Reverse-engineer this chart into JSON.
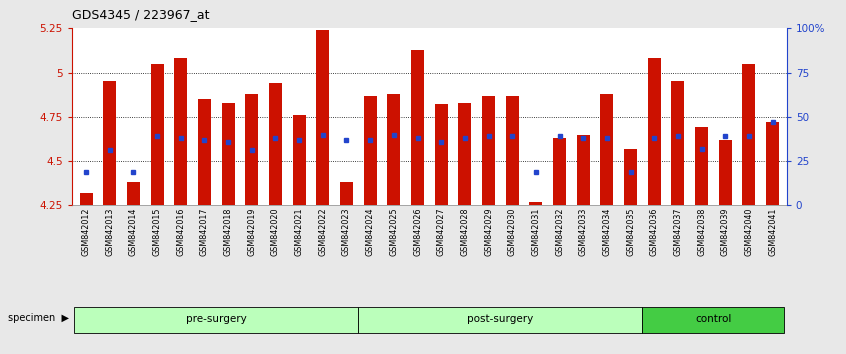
{
  "title": "GDS4345 / 223967_at",
  "samples": [
    "GSM842012",
    "GSM842013",
    "GSM842014",
    "GSM842015",
    "GSM842016",
    "GSM842017",
    "GSM842018",
    "GSM842019",
    "GSM842020",
    "GSM842021",
    "GSM842022",
    "GSM842023",
    "GSM842024",
    "GSM842025",
    "GSM842026",
    "GSM842027",
    "GSM842028",
    "GSM842029",
    "GSM842030",
    "GSM842031",
    "GSM842032",
    "GSM842033",
    "GSM842034",
    "GSM842035",
    "GSM842036",
    "GSM842037",
    "GSM842038",
    "GSM842039",
    "GSM842040",
    "GSM842041"
  ],
  "red_values": [
    4.32,
    4.95,
    4.38,
    5.05,
    5.08,
    4.85,
    4.83,
    4.88,
    4.94,
    4.76,
    5.24,
    4.38,
    4.87,
    4.88,
    5.13,
    4.82,
    4.83,
    4.87,
    4.87,
    4.27,
    4.63,
    4.65,
    4.88,
    4.57,
    5.08,
    4.95,
    4.69,
    4.62,
    5.05,
    4.72
  ],
  "blue_values": [
    4.44,
    4.56,
    4.44,
    4.64,
    4.63,
    4.62,
    4.61,
    4.56,
    4.63,
    4.62,
    4.65,
    4.62,
    4.62,
    4.65,
    4.63,
    4.61,
    4.63,
    4.64,
    4.64,
    4.44,
    4.64,
    4.63,
    4.63,
    4.44,
    4.63,
    4.64,
    4.57,
    4.64,
    4.64,
    4.72
  ],
  "groups": [
    {
      "label": "pre-surgery",
      "start": 0,
      "end": 12,
      "light": true
    },
    {
      "label": "post-surgery",
      "start": 12,
      "end": 24,
      "light": true
    },
    {
      "label": "control",
      "start": 24,
      "end": 30,
      "light": false
    }
  ],
  "ymin": 4.25,
  "ymax": 5.25,
  "yticks": [
    4.25,
    4.5,
    4.75,
    5.0,
    5.25
  ],
  "ytick_labels": [
    "4.25",
    "4.5",
    "4.75",
    "5",
    "5.25"
  ],
  "right_yticks": [
    0,
    25,
    50,
    75,
    100
  ],
  "right_yticklabels": [
    "0",
    "25",
    "50",
    "75",
    "100%"
  ],
  "bar_color": "#cc1100",
  "blue_color": "#2244cc",
  "bg_color": "#e8e8e8",
  "plot_bg": "#ffffff",
  "group_light_color": "#bbffbb",
  "group_dark_color": "#44cc44",
  "grid_lines": [
    4.5,
    4.75,
    5.0
  ]
}
